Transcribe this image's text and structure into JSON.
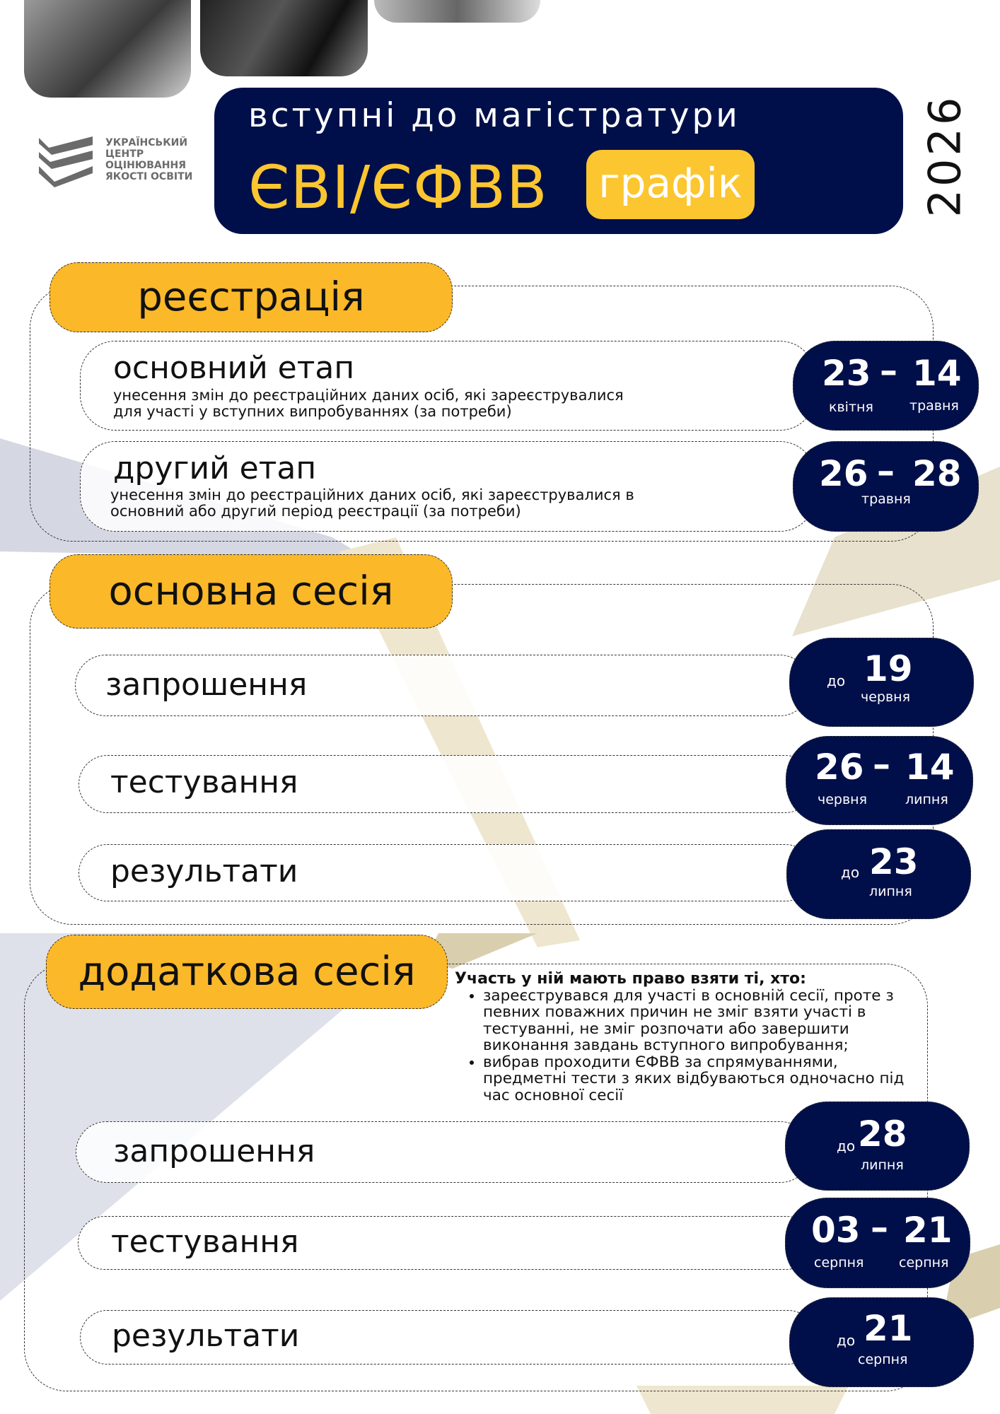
{
  "header": {
    "subtitle": "вступні до магістратури",
    "title": "ЄВІ/ЄФВВ",
    "badge": "графік",
    "year": "2026"
  },
  "logo": {
    "text": "УКРАЇНСЬКИЙ ЦЕНТР ОЦІНЮВАННЯ ЯКОСТІ ОСВІТИ"
  },
  "colors": {
    "navy": "#000f4a",
    "yellow": "#fbb829",
    "badge_yellow": "#fcc630"
  },
  "registration": {
    "title": "реєстрація",
    "rows": [
      {
        "label": "основний етап",
        "desc1": "унесення змін до реєстраційних даних осіб, які зареєструвалися",
        "desc2": "для участі у вступних випробуваннях (за потреби)",
        "from": "23",
        "from_month": "квітня",
        "dash": "–",
        "to": "14",
        "to_month": "травня"
      },
      {
        "label": "другий етап",
        "desc1": "унесення змін до реєстраційних даних осіб, які зареєструвалися в",
        "desc2": "основний або другий період реєстрації (за потреби)",
        "from": "26",
        "dash": "–",
        "to": "28",
        "month": "травня"
      }
    ]
  },
  "main_session": {
    "title": "основна сесія",
    "rows": [
      {
        "label": "запрошення",
        "prefix": "до",
        "day": "19",
        "month": "червня"
      },
      {
        "label": "тестування",
        "from": "26",
        "from_month": "червня",
        "dash": "–",
        "to": "14",
        "to_month": "липня"
      },
      {
        "label": "результати",
        "prefix": "до",
        "day": "23",
        "month": "липня"
      }
    ]
  },
  "extra_session": {
    "title": "додаткова сесія",
    "info_heading": "Участь у ній мають право взяти ті, хто:",
    "info_items": [
      "зареєструвався для участі в основній сесії, проте з певних поважних причин не зміг взяти участі в тестуванні, не зміг розпочати або завершити виконання завдань вступного випробування;",
      "вибрав проходити ЄФВВ за спрямуваннями, предметні тести з яких відбуваються одночасно під час основної сесії"
    ],
    "rows": [
      {
        "label": "запрошення",
        "prefix": "до",
        "day": "28",
        "month": "липня"
      },
      {
        "label": "тестування",
        "from": "03",
        "from_month": "серпня",
        "dash": "–",
        "to": "21",
        "to_month": "серпня"
      },
      {
        "label": "результати",
        "prefix": "до",
        "day": "21",
        "month": "серпня"
      }
    ]
  }
}
